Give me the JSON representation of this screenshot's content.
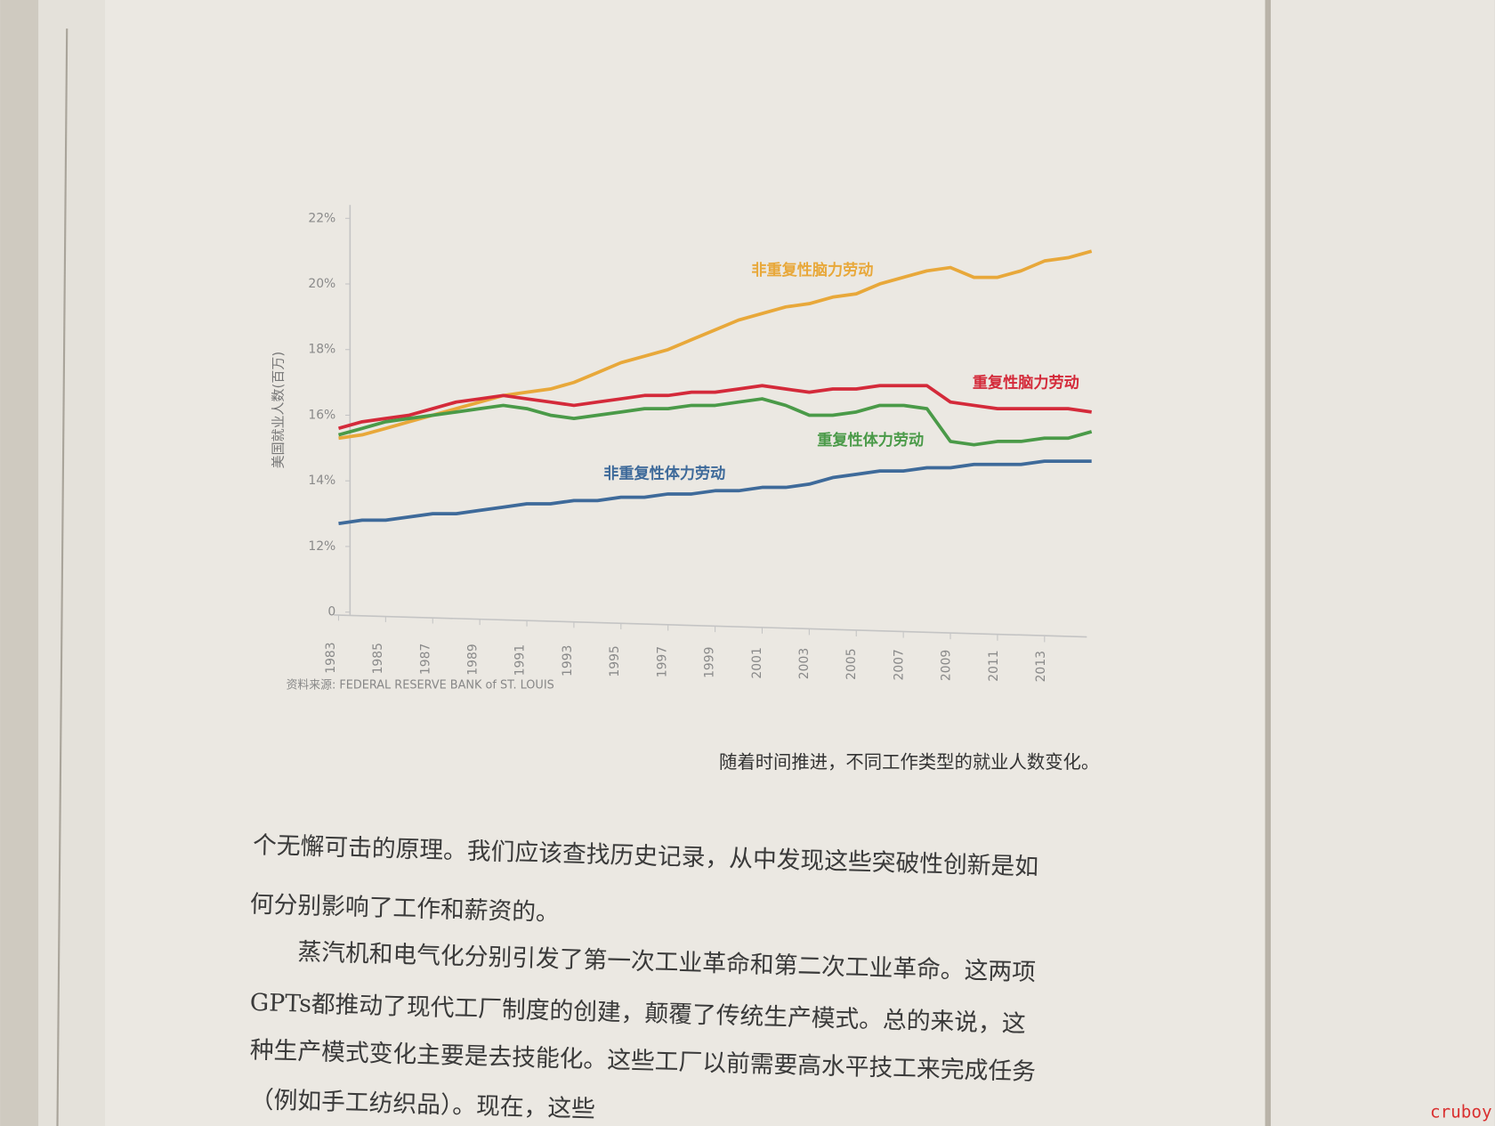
{
  "chart_data": {
    "type": "line",
    "y_label": "美国就业人数(百万)",
    "source": "资料来源: FEDERAL RESERVE BANK of ST. LOUIS",
    "x": [
      1983,
      1984,
      1985,
      1986,
      1987,
      1988,
      1989,
      1990,
      1991,
      1992,
      1993,
      1994,
      1995,
      1996,
      1997,
      1998,
      1999,
      2000,
      2001,
      2002,
      2003,
      2004,
      2005,
      2006,
      2007,
      2008,
      2009,
      2010,
      2011,
      2012,
      2013,
      2014,
      2015
    ],
    "xlim": [
      1983,
      2015
    ],
    "xticks": [
      1983,
      1985,
      1987,
      1989,
      1991,
      1993,
      1995,
      1997,
      1999,
      2001,
      2003,
      2005,
      2007,
      2009,
      2011,
      2013
    ],
    "ylim": [
      10,
      22
    ],
    "axis_break": true,
    "yticks": [
      {
        "value": 0,
        "label": "0"
      },
      {
        "value": 12,
        "label": "12%"
      },
      {
        "value": 14,
        "label": "14%"
      },
      {
        "value": 16,
        "label": "16%"
      },
      {
        "value": 18,
        "label": "18%"
      },
      {
        "value": 20,
        "label": "20%"
      },
      {
        "value": 22,
        "label": "22%"
      }
    ],
    "series": [
      {
        "name": "非重复性脑力劳动",
        "color": "#e8a83a",
        "values": [
          15.3,
          15.4,
          15.6,
          15.8,
          16.0,
          16.2,
          16.4,
          16.6,
          16.7,
          16.8,
          17.0,
          17.3,
          17.6,
          17.8,
          18.0,
          18.3,
          18.6,
          18.9,
          19.1,
          19.3,
          19.4,
          19.6,
          19.7,
          20.0,
          20.2,
          20.4,
          20.5,
          20.2,
          20.2,
          20.4,
          20.7,
          20.8,
          21.0
        ]
      },
      {
        "name": "重复性脑力劳动",
        "color": "#d42a3a",
        "values": [
          15.6,
          15.8,
          15.9,
          16.0,
          16.2,
          16.4,
          16.5,
          16.6,
          16.5,
          16.4,
          16.3,
          16.4,
          16.5,
          16.6,
          16.6,
          16.7,
          16.7,
          16.8,
          16.9,
          16.8,
          16.7,
          16.8,
          16.8,
          16.9,
          16.9,
          16.9,
          16.4,
          16.3,
          16.2,
          16.2,
          16.2,
          16.2,
          16.1
        ]
      },
      {
        "name": "重复性体力劳动",
        "color": "#4a9a48",
        "values": [
          15.4,
          15.6,
          15.8,
          15.9,
          16.0,
          16.1,
          16.2,
          16.3,
          16.2,
          16.0,
          15.9,
          16.0,
          16.1,
          16.2,
          16.2,
          16.3,
          16.3,
          16.4,
          16.5,
          16.3,
          16.0,
          16.0,
          16.1,
          16.3,
          16.3,
          16.2,
          15.2,
          15.1,
          15.2,
          15.2,
          15.3,
          15.3,
          15.5
        ]
      },
      {
        "name": "非重复性体力劳动",
        "color": "#3e6a9a",
        "values": [
          12.7,
          12.8,
          12.8,
          12.9,
          13.0,
          13.0,
          13.1,
          13.2,
          13.3,
          13.3,
          13.4,
          13.4,
          13.5,
          13.5,
          13.6,
          13.6,
          13.7,
          13.7,
          13.8,
          13.8,
          13.9,
          14.1,
          14.2,
          14.3,
          14.3,
          14.4,
          14.4,
          14.5,
          14.5,
          14.5,
          14.6,
          14.6,
          14.6
        ]
      }
    ]
  },
  "caption": "随着时间推进，不同工作类型的就业人数变化。",
  "body": [
    "个无懈可击的原理。我们应该查找历史记录，从中发现这些突破性创新是如",
    "何分别影响了工作和薪资的。",
    "蒸汽机和电气化分别引发了第一次工业革命和第二次工业革命。这两项",
    "GPTs都推动了现代工厂制度的创建，颠覆了传统生产模式。总的来说，这",
    "种生产模式变化主要是去技能化。这些工厂以前需要高水平技工来完成任务",
    "（例如手工纺织品）。现在，这些"
  ],
  "watermark": "cruboy"
}
